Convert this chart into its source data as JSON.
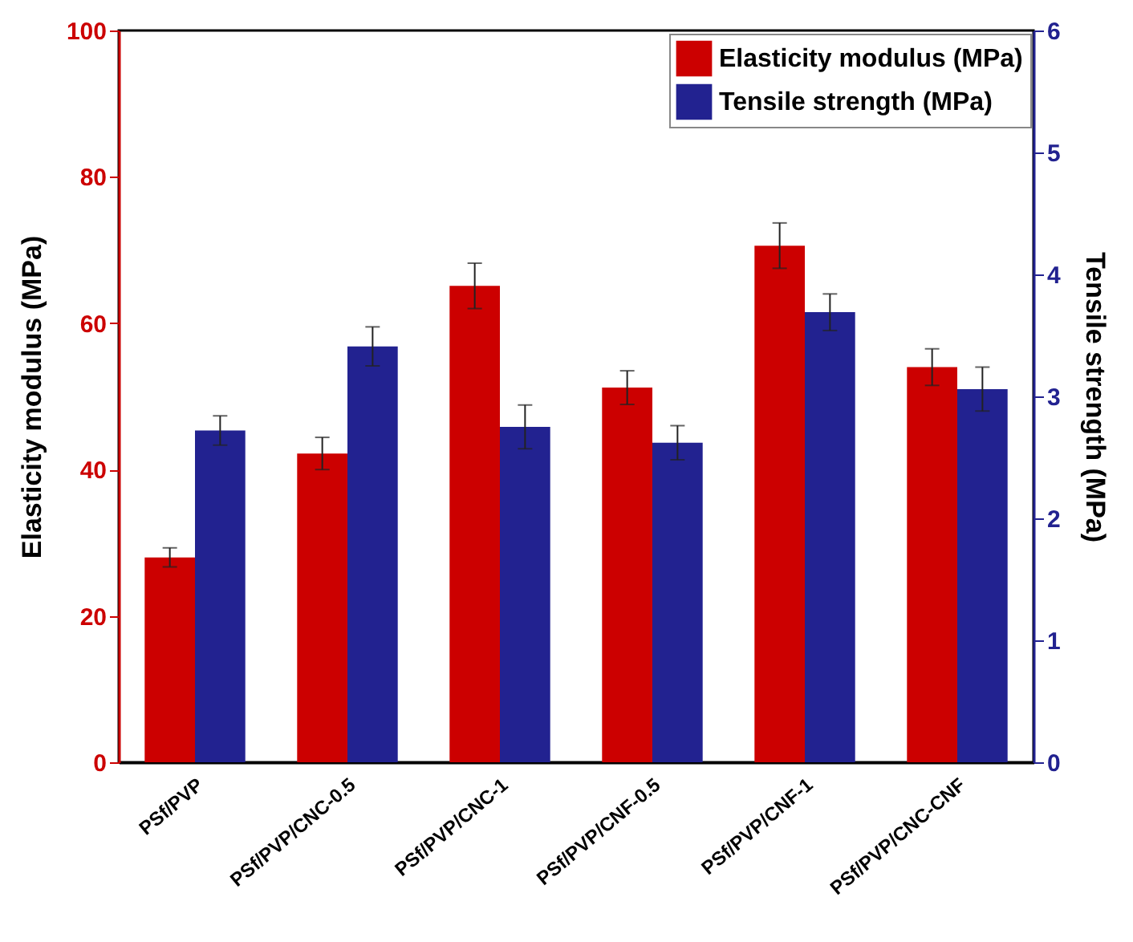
{
  "chart_data": {
    "type": "bar",
    "categories": [
      "PSf/PVP",
      "PSf/PVP/CNC-0.5",
      "PSf/PVP/CNC-1",
      "PSf/PVP/CNF-0.5",
      "PSf/PVP/CNF-1",
      "PSf/PVP/CNC-CNF"
    ],
    "series": [
      {
        "name": "Elasticity modulus (MPa)",
        "color": "#cc0000",
        "values": [
          28,
          42.2,
          65.1,
          51.2,
          70.6,
          54.0
        ],
        "errors": [
          1.3,
          2.2,
          3.1,
          2.3,
          3.1,
          2.5
        ]
      },
      {
        "name": "Tensile strength (MPa)",
        "color": "#222290",
        "axis": "y2",
        "values": [
          2.72,
          3.41,
          2.75,
          2.62,
          3.69,
          3.06
        ],
        "errors": [
          0.12,
          0.16,
          0.18,
          0.14,
          0.15,
          0.18
        ]
      }
    ],
    "ylabel": "Elasticity modulus (MPa)",
    "y2label": "Tensile strength (MPa)",
    "ylim": [
      0,
      100
    ],
    "yticks": [
      0,
      20,
      40,
      60,
      80,
      100
    ],
    "y2lim": [
      0,
      6
    ],
    "y2ticks": [
      0,
      1,
      2,
      3,
      4,
      5,
      6
    ],
    "legend": "top right",
    "grid": false
  }
}
